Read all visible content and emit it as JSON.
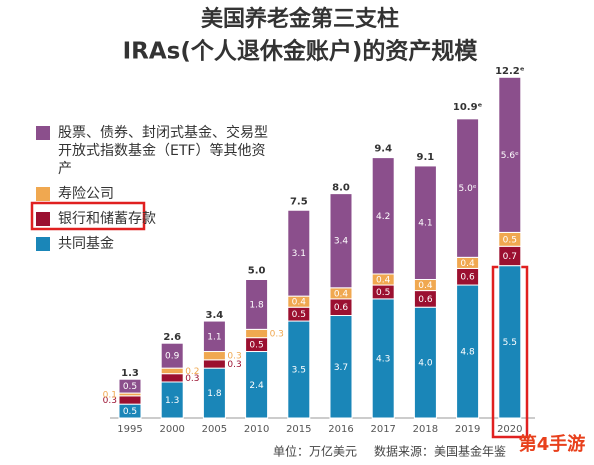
{
  "chart_data": {
    "type": "stacked-bar",
    "title": "美国养老金第三支柱",
    "subtitle": "IRAs(个人退休金账户)的资产规模",
    "categories": [
      "1995",
      "2000",
      "2005",
      "2010",
      "2015",
      "2016",
      "2017",
      "2018",
      "2019",
      "2020"
    ],
    "series": [
      {
        "name": "共同基金",
        "color": "#1a86b8",
        "values": [
          0.5,
          1.3,
          1.8,
          2.4,
          3.5,
          3.7,
          4.3,
          4.0,
          4.8,
          5.5
        ],
        "value_labels": [
          "0.5",
          "1.3",
          "1.8",
          "2.4",
          "3.5",
          "3.7",
          "4.3",
          "4.0",
          "4.8",
          "5.5"
        ]
      },
      {
        "name": "银行和储蓄存款",
        "color": "#9b1030",
        "values": [
          0.3,
          0.3,
          0.3,
          0.5,
          0.5,
          0.6,
          0.5,
          0.6,
          0.6,
          0.7
        ],
        "value_labels": [
          "0.3",
          "0.3",
          "0.3",
          "0.5",
          "0.5",
          "0.6",
          "0.5",
          "0.6",
          "0.6",
          "0.7"
        ]
      },
      {
        "name": "寿险公司",
        "color": "#f0a850",
        "values": [
          0.1,
          0.2,
          0.3,
          0.3,
          0.4,
          0.4,
          0.4,
          0.4,
          0.4,
          0.5
        ],
        "value_labels": [
          "0.1",
          "0.2",
          "0.3",
          "0.3",
          "0.4",
          "0.4",
          "0.4",
          "0.4",
          "0.4",
          "0.5"
        ]
      },
      {
        "name": "股票、债券、封闭式基金、交易型开放式指数基金（ETF）等其他资产",
        "color": "#8b4f8c",
        "values": [
          0.5,
          0.9,
          1.1,
          1.8,
          3.1,
          3.4,
          4.2,
          4.1,
          5.0,
          5.6
        ],
        "value_labels": [
          "0.5",
          "0.9",
          "1.1",
          "1.8",
          "3.1",
          "3.4",
          "4.2",
          "4.1",
          "5.0ᵉ",
          "5.6ᵉ"
        ]
      }
    ],
    "totals": [
      1.3,
      2.6,
      3.4,
      5.0,
      7.5,
      8.0,
      9.4,
      9.1,
      10.9,
      12.2
    ],
    "total_labels": [
      "1.3",
      "2.6",
      "3.4",
      "5.0",
      "7.5",
      "8.0",
      "9.4",
      "9.1",
      "10.9ᵉ",
      "12.2ᵉ"
    ],
    "unit_note": "单位：万亿美元",
    "source": "数据来源：美国基金年鉴",
    "watermark": "第4手游"
  }
}
